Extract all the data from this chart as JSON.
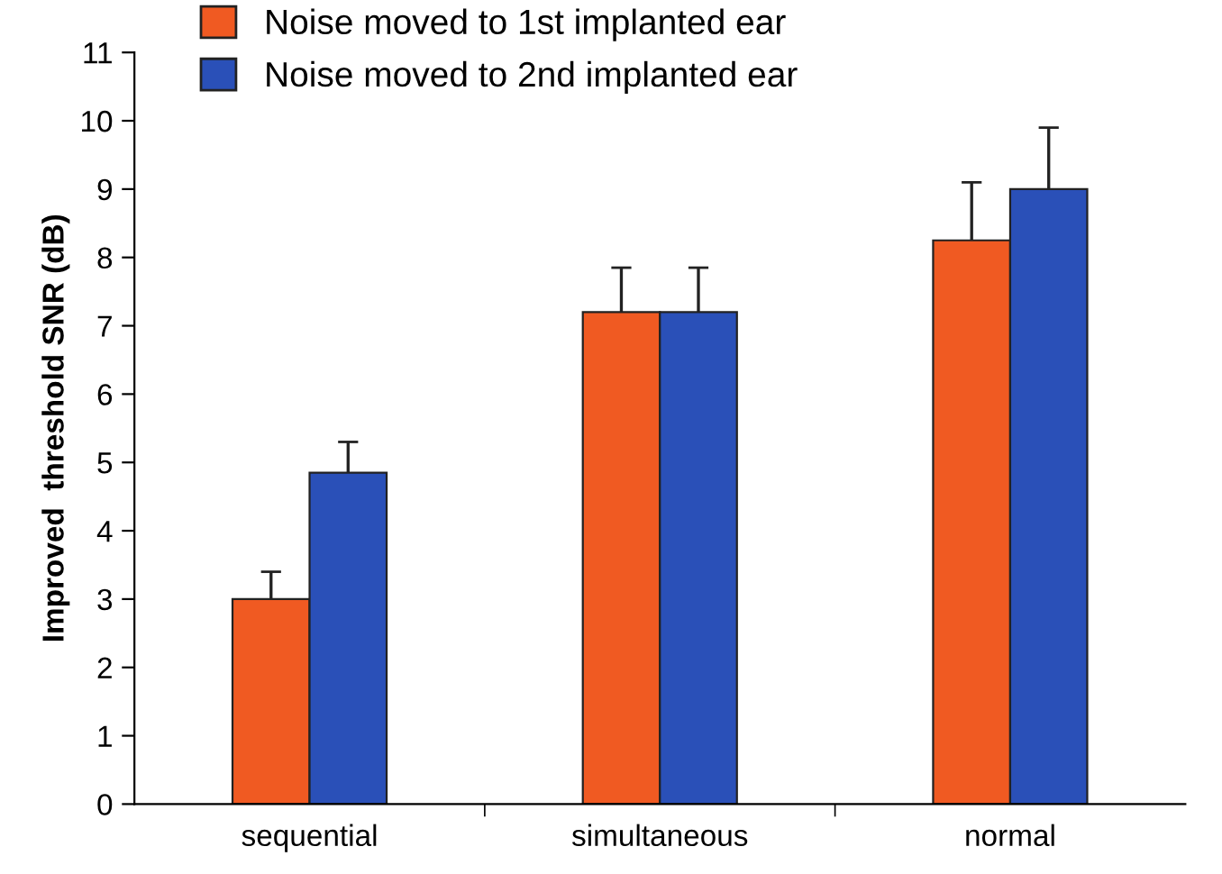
{
  "chart_data": {
    "type": "bar",
    "ylabel": "Improved  threshold SNR (dB)",
    "categories": [
      "sequential",
      "simultaneous",
      "normal"
    ],
    "series": [
      {
        "name": "Noise moved to 1st implanted ear",
        "color": "#f05a22",
        "values": [
          3.0,
          7.2,
          8.25
        ],
        "errors": [
          0.4,
          0.65,
          0.85
        ]
      },
      {
        "name": "Noise moved to 2nd implanted ear",
        "color": "#2a50b8",
        "values": [
          4.85,
          7.2,
          9.0
        ],
        "errors": [
          0.45,
          0.65,
          0.9
        ]
      }
    ],
    "ylim": [
      0,
      11
    ],
    "yticks": [
      0,
      1,
      2,
      3,
      4,
      5,
      6,
      7,
      8,
      9,
      10,
      11
    ],
    "legend": "top left",
    "grid": false
  }
}
